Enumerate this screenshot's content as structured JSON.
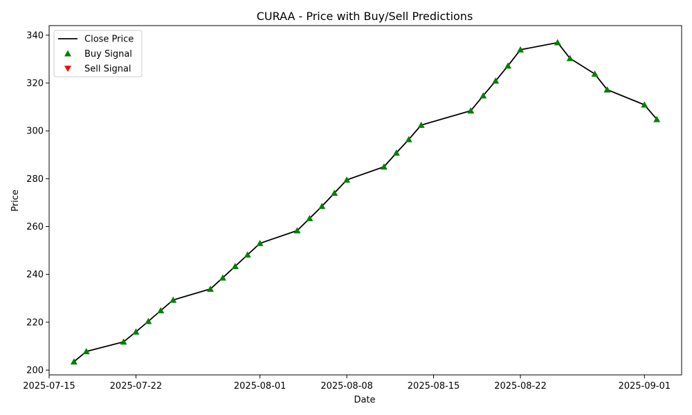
{
  "chart_data": {
    "type": "line",
    "title": "CURAA - Price with Buy/Sell Predictions",
    "xlabel": "Date",
    "ylabel": "Price",
    "xlim": [
      "2025-07-15",
      "2025-09-04"
    ],
    "ylim": [
      198,
      344
    ],
    "x_ticks": [
      "2025-07-15",
      "2025-07-22",
      "2025-08-01",
      "2025-08-08",
      "2025-08-15",
      "2025-08-22",
      "2025-09-01"
    ],
    "y_ticks": [
      200,
      220,
      240,
      260,
      280,
      300,
      320,
      340
    ],
    "grid": false,
    "legend_position": "top-left",
    "series": [
      {
        "name": "Close Price",
        "kind": "line",
        "color": "#000000",
        "points": [
          [
            "2025-07-17",
            203.5
          ],
          [
            "2025-07-18",
            207.8
          ],
          [
            "2025-07-21",
            211.8
          ],
          [
            "2025-07-22",
            216.0
          ],
          [
            "2025-07-23",
            220.4
          ],
          [
            "2025-07-24",
            224.9
          ],
          [
            "2025-07-25",
            229.3
          ],
          [
            "2025-07-28",
            233.9
          ],
          [
            "2025-07-29",
            238.6
          ],
          [
            "2025-07-30",
            243.4
          ],
          [
            "2025-07-31",
            248.2
          ],
          [
            "2025-08-01",
            253.0
          ],
          [
            "2025-08-04",
            258.3
          ],
          [
            "2025-08-05",
            263.4
          ],
          [
            "2025-08-06",
            268.5
          ],
          [
            "2025-08-07",
            274.0
          ],
          [
            "2025-08-08",
            279.5
          ],
          [
            "2025-08-11",
            285.0
          ],
          [
            "2025-08-12",
            290.8
          ],
          [
            "2025-08-13",
            296.4
          ],
          [
            "2025-08-14",
            302.4
          ],
          [
            "2025-08-18",
            308.4
          ],
          [
            "2025-08-19",
            314.7
          ],
          [
            "2025-08-20",
            320.9
          ],
          [
            "2025-08-21",
            327.2
          ],
          [
            "2025-08-22",
            333.9
          ],
          [
            "2025-08-25",
            336.9
          ],
          [
            "2025-08-26",
            330.3
          ],
          [
            "2025-08-28",
            323.8
          ],
          [
            "2025-08-29",
            317.2
          ],
          [
            "2025-09-01",
            310.9
          ],
          [
            "2025-09-02",
            304.8
          ]
        ]
      },
      {
        "name": "Buy Signal",
        "kind": "marker",
        "marker": "triangle-up",
        "color": "#008000",
        "points": [
          [
            "2025-07-17",
            203.5
          ],
          [
            "2025-07-18",
            207.8
          ],
          [
            "2025-07-21",
            211.8
          ],
          [
            "2025-07-22",
            216.0
          ],
          [
            "2025-07-23",
            220.4
          ],
          [
            "2025-07-24",
            224.9
          ],
          [
            "2025-07-25",
            229.3
          ],
          [
            "2025-07-28",
            233.9
          ],
          [
            "2025-07-29",
            238.6
          ],
          [
            "2025-07-30",
            243.4
          ],
          [
            "2025-07-31",
            248.2
          ],
          [
            "2025-08-01",
            253.0
          ],
          [
            "2025-08-04",
            258.3
          ],
          [
            "2025-08-05",
            263.4
          ],
          [
            "2025-08-06",
            268.5
          ],
          [
            "2025-08-07",
            274.0
          ],
          [
            "2025-08-08",
            279.5
          ],
          [
            "2025-08-11",
            285.0
          ],
          [
            "2025-08-12",
            290.8
          ],
          [
            "2025-08-13",
            296.4
          ],
          [
            "2025-08-14",
            302.4
          ],
          [
            "2025-08-18",
            308.4
          ],
          [
            "2025-08-19",
            314.7
          ],
          [
            "2025-08-20",
            320.9
          ],
          [
            "2025-08-21",
            327.2
          ],
          [
            "2025-08-22",
            333.9
          ],
          [
            "2025-08-25",
            336.9
          ],
          [
            "2025-08-26",
            330.3
          ],
          [
            "2025-08-28",
            323.8
          ],
          [
            "2025-08-29",
            317.2
          ],
          [
            "2025-09-01",
            310.9
          ],
          [
            "2025-09-02",
            304.8
          ]
        ]
      },
      {
        "name": "Sell Signal",
        "kind": "marker",
        "marker": "triangle-down",
        "color": "#ff0000",
        "points": []
      }
    ]
  }
}
